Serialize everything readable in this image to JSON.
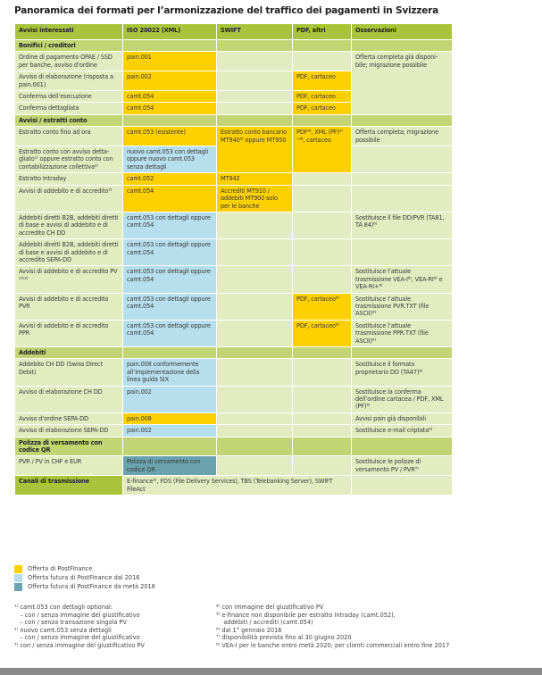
{
  "title": "Panoramica dei formati per l’armonizzazione del traffico dei pagamenti in Svizzera",
  "colors": {
    "header": "#a9c43c",
    "section": "#c2d474",
    "body": "#e3ebc0",
    "yellow": "#fdd100",
    "blue": "#b6deec",
    "teal": "#6aa3ad"
  },
  "table": {
    "headers": [
      "Avvisi interessati",
      "ISO 20022 (XML)",
      "SWIFT",
      "PDF, altri",
      "Osservazioni"
    ],
    "rows": [
      {
        "type": "section",
        "cells": [
          {
            "t": "Bonifici / creditori"
          },
          {
            "t": ""
          },
          {
            "t": ""
          },
          {
            "t": ""
          },
          {
            "t": ""
          }
        ]
      },
      {
        "type": "body",
        "cells": [
          {
            "t": "Ordine di pagamento OPAE / SSD per banche, avviso d’ordine"
          },
          {
            "t": "pain.001",
            "c": "yellow"
          },
          {
            "t": ""
          },
          {
            "t": ""
          },
          {
            "t": "Offerta completa già disponi-bile; migrazione possibile",
            "rs": 4
          }
        ]
      },
      {
        "type": "body",
        "cells": [
          {
            "t": "Avviso di elaborazione (risposta a pain.001)"
          },
          {
            "t": "pain.002",
            "c": "yellow"
          },
          {
            "t": ""
          },
          {
            "t": "PDF, cartaceo",
            "c": "yellow"
          }
        ]
      },
      {
        "type": "body",
        "cells": [
          {
            "t": "Conferma dell’esecuzione"
          },
          {
            "t": "camt.054",
            "c": "yellow"
          },
          {
            "t": ""
          },
          {
            "t": "PDF, cartaceo",
            "c": "yellow"
          }
        ]
      },
      {
        "type": "body",
        "cells": [
          {
            "t": "Conferma dettagliata"
          },
          {
            "t": "camt.054",
            "c": "yellow"
          },
          {
            "t": ""
          },
          {
            "t": "PDF, cartaceo",
            "c": "yellow"
          }
        ]
      },
      {
        "type": "section",
        "cells": [
          {
            "t": "Avvisi / estratti conto"
          },
          {
            "t": ""
          },
          {
            "t": ""
          },
          {
            "t": ""
          },
          {
            "t": ""
          }
        ]
      },
      {
        "type": "body",
        "cells": [
          {
            "t": "Estratto conto fino ad ora"
          },
          {
            "t": "camt.053 (esistente)",
            "c": "yellow"
          },
          {
            "t": "Estratto conto bancario MT940³⁾ oppure MT950",
            "c": "yellow",
            "rs": 2
          },
          {
            "t": "PDF⁴⁾, XML (PF)⁴⁾⁺⁶⁾, cartaceo",
            "c": "yellow",
            "rs": 2
          },
          {
            "t": "Offerta completa; migrazione possibile"
          }
        ]
      },
      {
        "type": "body",
        "cells": [
          {
            "t": "Estratto conto con avviso detta-gliato¹⁾ oppure estratto conto con contabilizzazione collettiva²⁾"
          },
          {
            "t": "nuovo camt.053 con dettagli oppure nuovo camt.053 senza dettagli",
            "c": "blue"
          },
          {
            "t": ""
          }
        ]
      },
      {
        "type": "body",
        "cells": [
          {
            "t": "Estratto Intraday"
          },
          {
            "t": "camt.052",
            "c": "yellow"
          },
          {
            "t": "MT942",
            "c": "yellow"
          },
          {
            "t": ""
          },
          {
            "t": ""
          }
        ]
      },
      {
        "type": "body",
        "cells": [
          {
            "t": "Avvisi di addebito e di accredito³⁾"
          },
          {
            "t": "camt.054",
            "c": "yellow"
          },
          {
            "t": "Accrediti MT910 / addebiti MT900 solo per le banche",
            "c": "yellow"
          },
          {
            "t": ""
          },
          {
            "t": ""
          }
        ]
      },
      {
        "type": "body",
        "cells": [
          {
            "t": "Addebiti diretti B2B, addebiti diretti di base e avvisi di addebito e di accredito CH DD"
          },
          {
            "t": "camt.053 con dettagli oppure camt.054",
            "c": "blue"
          },
          {
            "t": ""
          },
          {
            "t": ""
          },
          {
            "t": "Sostituisce il file DD/PVR (TA81, TA 84)⁶⁾"
          }
        ]
      },
      {
        "type": "body",
        "cells": [
          {
            "t": "Addebiti diretti B2B, addebiti diretti di base e avvisi di addebito e di accredito SEPA-DD"
          },
          {
            "t": "camt.053 con dettagli oppure camt.054",
            "c": "blue"
          },
          {
            "t": ""
          },
          {
            "t": ""
          },
          {
            "t": ""
          }
        ]
      },
      {
        "type": "body",
        "cells": [
          {
            "t": "Avvisi di addebito e di accredito PV ¹⁾ᵒ²⁾"
          },
          {
            "t": "camt.053 con dettagli oppure camt.054",
            "c": "blue"
          },
          {
            "t": ""
          },
          {
            "t": ""
          },
          {
            "t": "Sostituisce l’attuale trasmissione VEA-I⁸⁾, VEA-RI⁶⁾ e VEA-RI+⁶⁾"
          }
        ]
      },
      {
        "type": "body",
        "cells": [
          {
            "t": "Avvisi di addebito e di accredito PVR"
          },
          {
            "t": "camt.053 con dettagli oppure camt.054",
            "c": "blue"
          },
          {
            "t": ""
          },
          {
            "t": "PDF, cartaceo⁶⁾",
            "c": "yellow"
          },
          {
            "t": "Sostituisce l’attuale trasmissione PVR.TXT (file ASCII)⁶⁾"
          }
        ]
      },
      {
        "type": "body",
        "cells": [
          {
            "t": "Avvisi di addebito e di accredito PPR"
          },
          {
            "t": "camt.053 con dettagli oppure camt.054",
            "c": "blue"
          },
          {
            "t": ""
          },
          {
            "t": "PDF, cartaceo⁶⁾",
            "c": "yellow"
          },
          {
            "t": "Sostituisce l’attuale trasmissione PPR.TXT (file ASCII)⁶⁾"
          }
        ]
      },
      {
        "type": "section",
        "cells": [
          {
            "t": "Addebiti"
          },
          {
            "t": ""
          },
          {
            "t": ""
          },
          {
            "t": ""
          },
          {
            "t": ""
          }
        ]
      },
      {
        "type": "body",
        "cells": [
          {
            "t": "Addebito CH DD (Swiss Direct Debit)"
          },
          {
            "t": "pain.008 conformemente all’implementazione della linea guida SIX",
            "c": "blue"
          },
          {
            "t": ""
          },
          {
            "t": ""
          },
          {
            "t": "Sostituisce il formato proprietario DD (TA47)⁶⁾"
          }
        ]
      },
      {
        "type": "body",
        "cells": [
          {
            "t": "Avviso di elaborazione CH DD"
          },
          {
            "t": "pain.002",
            "c": "blue"
          },
          {
            "t": ""
          },
          {
            "t": ""
          },
          {
            "t": "Sostituisce la conferma dell’ordine cartacea / PDF, XML (PF)⁶⁾"
          }
        ]
      },
      {
        "type": "body",
        "cells": [
          {
            "t": "Avviso d’ordine SEPA-DD"
          },
          {
            "t": "pain.008",
            "c": "yellow"
          },
          {
            "t": ""
          },
          {
            "t": ""
          },
          {
            "t": "Avvisi pain già disponibili"
          }
        ]
      },
      {
        "type": "body",
        "cells": [
          {
            "t": "Avviso di elaborazione SEPA-DD"
          },
          {
            "t": "pain.002",
            "c": "blue"
          },
          {
            "t": ""
          },
          {
            "t": ""
          },
          {
            "t": "Sostituisce e-mail criptata⁶⁾"
          }
        ]
      },
      {
        "type": "section",
        "cells": [
          {
            "t": "Polizza di versamento con codice QR"
          },
          {
            "t": ""
          },
          {
            "t": ""
          },
          {
            "t": ""
          },
          {
            "t": ""
          }
        ]
      },
      {
        "type": "body",
        "cells": [
          {
            "t": "PVR / PV in CHF e EUR"
          },
          {
            "t": "Polizza di versamento con codice QR",
            "c": "teal"
          },
          {
            "t": ""
          },
          {
            "t": ""
          },
          {
            "t": "Sostituisce le polizze di versamento PV / PVR⁷⁾"
          }
        ]
      },
      {
        "type": "channel",
        "cells": [
          {
            "t": "Canali di trasmissione"
          },
          {
            "t": "E-finance⁵⁾, FDS (File Delivery Services), TBS (Telebanking Server), SWIFT FileAct",
            "cs": 3
          },
          {
            "t": ""
          }
        ]
      }
    ]
  },
  "legend": [
    {
      "label": "Offerta di PostFinance",
      "color": "#fdd100"
    },
    {
      "label": "Offerta futura di PostFinance dal 2016",
      "color": "#b6deec"
    },
    {
      "label": "Offerta futura di PostFinance da metà 2018",
      "color": "#6aa3ad"
    }
  ],
  "footnotes_left": [
    "¹⁾ camt.053 con dettagli optional:",
    "   – con / senza immagine del giustificativo",
    "   – con / senza transazione singola PV",
    "²⁾ nuovo camt.053 senza dettagli",
    "   – con / senza immagine del giustificativo",
    "³⁾ con / senza immagine del giustificativo PV"
  ],
  "footnotes_right": [
    "⁴⁾ con immagine del giustificativo PV",
    "⁵⁾ e-finance non disponibile per estratto Intraday (camt.052),",
    "    addebiti / accrediti (camt.054)",
    "⁶⁾ dal 1° gennaio 2016",
    "⁷⁾ disponibilità prevista fino al 30 giugno 2020",
    "⁸⁾ VEA-I per le banche entro metà 2020; per clienti commerciali entro fine 2017"
  ]
}
